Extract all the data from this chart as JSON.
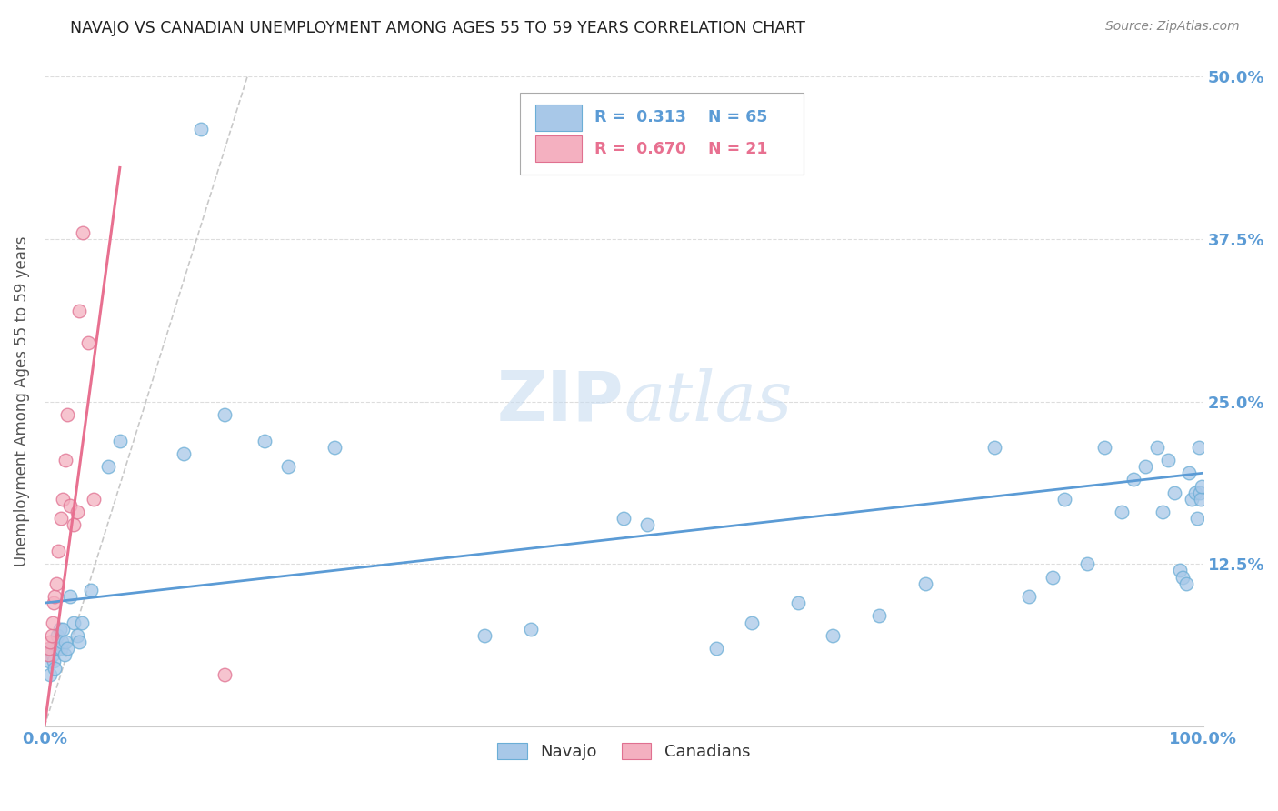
{
  "title": "NAVAJO VS CANADIAN UNEMPLOYMENT AMONG AGES 55 TO 59 YEARS CORRELATION CHART",
  "source": "Source: ZipAtlas.com",
  "ylabel": "Unemployment Among Ages 55 to 59 years",
  "xlim": [
    0.0,
    1.0
  ],
  "ylim": [
    0.0,
    0.5
  ],
  "xtick_positions": [
    0.0,
    0.125,
    0.25,
    0.375,
    0.5,
    0.625,
    0.75,
    0.875,
    1.0
  ],
  "xticklabels": [
    "0.0%",
    "",
    "",
    "",
    "",
    "",
    "",
    "",
    "100.0%"
  ],
  "ytick_positions": [
    0.0,
    0.125,
    0.25,
    0.375,
    0.5
  ],
  "yticklabels": [
    "",
    "12.5%",
    "25.0%",
    "37.5%",
    "50.0%"
  ],
  "navajo_R": "0.313",
  "navajo_N": "65",
  "canadian_R": "0.670",
  "canadian_N": "21",
  "navajo_color": "#A8C8E8",
  "navajo_edge_color": "#6BAED6",
  "canadian_color": "#F4B0C0",
  "canadian_edge_color": "#E07090",
  "navajo_line_color": "#5B9BD5",
  "canadian_line_color": "#E87090",
  "tick_color": "#5B9BD5",
  "grid_color": "#DDDDDD",
  "dash_color": "#BBBBBB",
  "watermark_color": "#C8DCF0",
  "navajo_x": [
    0.003,
    0.004,
    0.005,
    0.006,
    0.007,
    0.008,
    0.009,
    0.01,
    0.011,
    0.012,
    0.013,
    0.014,
    0.015,
    0.016,
    0.017,
    0.018,
    0.02,
    0.022,
    0.025,
    0.028,
    0.03,
    0.032,
    0.04,
    0.055,
    0.065,
    0.12,
    0.135,
    0.155,
    0.19,
    0.21,
    0.25,
    0.38,
    0.42,
    0.5,
    0.52,
    0.58,
    0.61,
    0.65,
    0.68,
    0.72,
    0.76,
    0.82,
    0.85,
    0.87,
    0.88,
    0.9,
    0.915,
    0.93,
    0.94,
    0.95,
    0.96,
    0.965,
    0.97,
    0.975,
    0.98,
    0.982,
    0.985,
    0.988,
    0.99,
    0.993,
    0.995,
    0.996,
    0.997,
    0.998,
    0.999
  ],
  "navajo_y": [
    0.055,
    0.05,
    0.04,
    0.06,
    0.055,
    0.05,
    0.045,
    0.06,
    0.07,
    0.06,
    0.075,
    0.06,
    0.065,
    0.075,
    0.055,
    0.065,
    0.06,
    0.1,
    0.08,
    0.07,
    0.065,
    0.08,
    0.105,
    0.2,
    0.22,
    0.21,
    0.46,
    0.24,
    0.22,
    0.2,
    0.215,
    0.07,
    0.075,
    0.16,
    0.155,
    0.06,
    0.08,
    0.095,
    0.07,
    0.085,
    0.11,
    0.215,
    0.1,
    0.115,
    0.175,
    0.125,
    0.215,
    0.165,
    0.19,
    0.2,
    0.215,
    0.165,
    0.205,
    0.18,
    0.12,
    0.115,
    0.11,
    0.195,
    0.175,
    0.18,
    0.16,
    0.215,
    0.18,
    0.175,
    0.185
  ],
  "canadian_x": [
    0.003,
    0.004,
    0.005,
    0.006,
    0.007,
    0.008,
    0.009,
    0.01,
    0.012,
    0.014,
    0.016,
    0.018,
    0.02,
    0.022,
    0.025,
    0.028,
    0.03,
    0.033,
    0.038,
    0.042,
    0.155
  ],
  "canadian_y": [
    0.055,
    0.06,
    0.065,
    0.07,
    0.08,
    0.095,
    0.1,
    0.11,
    0.135,
    0.16,
    0.175,
    0.205,
    0.24,
    0.17,
    0.155,
    0.165,
    0.32,
    0.38,
    0.295,
    0.175,
    0.04
  ],
  "navajo_trendline_x": [
    0.0,
    1.0
  ],
  "navajo_trendline_y": [
    0.095,
    0.195
  ],
  "canadian_trendline_x": [
    0.0,
    0.065
  ],
  "canadian_trendline_y": [
    0.0,
    0.43
  ],
  "dash_line_x": [
    0.0,
    0.175
  ],
  "dash_line_y": [
    0.0,
    0.5
  ]
}
